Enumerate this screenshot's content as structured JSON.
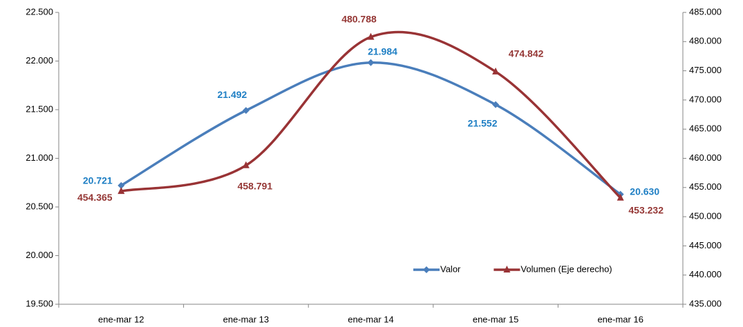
{
  "chart_data": {
    "type": "line",
    "categories": [
      "ene-mar 12",
      "ene-mar 13",
      "ene-mar 14",
      "ene-mar 15",
      "ene-mar 16"
    ],
    "series": [
      {
        "name": "Valor",
        "color": "#4a7ebb",
        "marker": "diamond",
        "values": [
          20721,
          21492,
          21984,
          21552,
          20630
        ],
        "value_labels": [
          "20.721",
          "21.492",
          "21.984",
          "21.552",
          "20.630"
        ]
      },
      {
        "name": "Volumen (Eje derecho)",
        "color": "#993335",
        "marker": "triangle",
        "axis": "y2",
        "values": [
          454365,
          458791,
          480788,
          474842,
          453232
        ],
        "value_labels": [
          "454.365",
          "458.791",
          "480.788",
          "474.842",
          "453.232"
        ]
      }
    ],
    "ylim": [
      19500,
      22500
    ],
    "yticks": [
      {
        "value": 19500,
        "label": "19.500"
      },
      {
        "value": 20000,
        "label": "20.000"
      },
      {
        "value": 20500,
        "label": "20.500"
      },
      {
        "value": 21000,
        "label": "21.000"
      },
      {
        "value": 21500,
        "label": "21.500"
      },
      {
        "value": 22000,
        "label": "22.000"
      },
      {
        "value": 22500,
        "label": "22.500"
      }
    ],
    "y2lim": [
      435000,
      485000
    ],
    "y2ticks": [
      {
        "value": 435000,
        "label": "435.000"
      },
      {
        "value": 440000,
        "label": "440.000"
      },
      {
        "value": 445000,
        "label": "445.000"
      },
      {
        "value": 450000,
        "label": "450.000"
      },
      {
        "value": 455000,
        "label": "455.000"
      },
      {
        "value": 460000,
        "label": "460.000"
      },
      {
        "value": 465000,
        "label": "465.000"
      },
      {
        "value": 470000,
        "label": "470.000"
      },
      {
        "value": 475000,
        "label": "475.000"
      },
      {
        "value": 480000,
        "label": "480.000"
      },
      {
        "value": 485000,
        "label": "485.000"
      }
    ],
    "smooth": true,
    "grid": false,
    "legend": "bottom-right"
  }
}
